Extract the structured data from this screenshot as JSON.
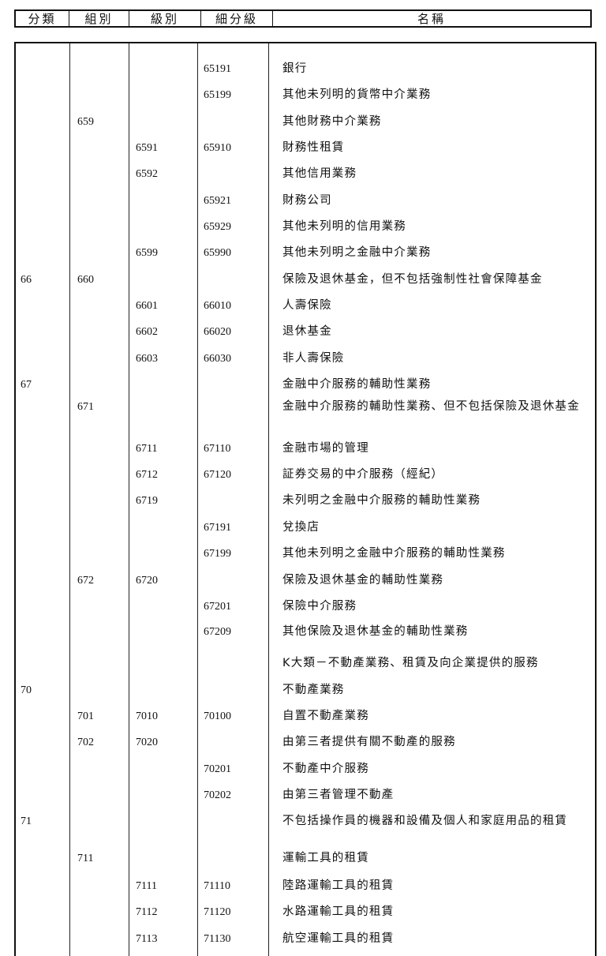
{
  "header": [
    "分類",
    "組別",
    "級別",
    "細分級",
    "名稱"
  ],
  "rows": [
    {
      "c1": "",
      "c2": "",
      "c3": "",
      "c4": "65191",
      "name": "銀行"
    },
    {
      "c1": "",
      "c2": "",
      "c3": "",
      "c4": "65199",
      "name": "其他未列明的貨幣中介業務"
    },
    {
      "c1": "",
      "c2": "659",
      "c3": "",
      "c4": "",
      "name": "其他財務中介業務"
    },
    {
      "c1": "",
      "c2": "",
      "c3": "6591",
      "c4": "65910",
      "name": "財務性租賃"
    },
    {
      "c1": "",
      "c2": "",
      "c3": "6592",
      "c4": "",
      "name": "其他信用業務"
    },
    {
      "c1": "",
      "c2": "",
      "c3": "",
      "c4": "65921",
      "name": "財務公司"
    },
    {
      "c1": "",
      "c2": "",
      "c3": "",
      "c4": "65929",
      "name": "其他未列明的信用業務"
    },
    {
      "c1": "",
      "c2": "",
      "c3": "6599",
      "c4": "65990",
      "name": "其他未列明之金融中介業務"
    },
    {
      "c1": "66",
      "c2": "660",
      "c3": "",
      "c4": "",
      "name": "保險及退休基金，但不包括強制性社會保障基金"
    },
    {
      "c1": "",
      "c2": "",
      "c3": "6601",
      "c4": "66010",
      "name": "人壽保險"
    },
    {
      "c1": "",
      "c2": "",
      "c3": "6602",
      "c4": "66020",
      "name": "退休基金"
    },
    {
      "c1": "",
      "c2": "",
      "c3": "6603",
      "c4": "66030",
      "name": "非人壽保險"
    },
    {
      "c1": "67",
      "c2": "",
      "c3": "",
      "c4": "",
      "name": "金融中介服務的輔助性業務"
    },
    {
      "c1": "",
      "c2": "671",
      "c3": "",
      "c4": "",
      "name": "金融中介服務的輔助性業務、但不包括保險及退休基金"
    },
    {
      "c1": "",
      "c2": "",
      "c3": "6711",
      "c4": "67110",
      "name": "金融市場的管理"
    },
    {
      "c1": "",
      "c2": "",
      "c3": "6712",
      "c4": "67120",
      "name": "証券交易的中介服務（經紀）"
    },
    {
      "c1": "",
      "c2": "",
      "c3": "6719",
      "c4": "",
      "name": "未列明之金融中介服務的輔助性業務"
    },
    {
      "c1": "",
      "c2": "",
      "c3": "",
      "c4": "67191",
      "name": "兌換店"
    },
    {
      "c1": "",
      "c2": "",
      "c3": "",
      "c4": "67199",
      "name": "其他未列明之金融中介服務的輔助性業務"
    },
    {
      "c1": "",
      "c2": "672",
      "c3": "6720",
      "c4": "",
      "name": "保險及退休基金的輔助性業務"
    },
    {
      "c1": "",
      "c2": "",
      "c3": "",
      "c4": "67201",
      "name": "保險中介服務"
    },
    {
      "c1": "",
      "c2": "",
      "c3": "",
      "c4": "67209",
      "name": "其他保險及退休基金的輔助性業務"
    },
    {
      "c1": "",
      "c2": "",
      "c3": "",
      "c4": "",
      "name": "K大類－不動產業務、租賃及向企業提供的服務"
    },
    {
      "c1": "70",
      "c2": "",
      "c3": "",
      "c4": "",
      "name": "不動產業務"
    },
    {
      "c1": "",
      "c2": "701",
      "c3": "7010",
      "c4": "70100",
      "name": "自置不動產業務"
    },
    {
      "c1": "",
      "c2": "702",
      "c3": "7020",
      "c4": "",
      "name": "由第三者提供有關不動產的服務"
    },
    {
      "c1": "",
      "c2": "",
      "c3": "",
      "c4": "70201",
      "name": "不動產中介服務"
    },
    {
      "c1": "",
      "c2": "",
      "c3": "",
      "c4": "70202",
      "name": "由第三者管理不動產"
    },
    {
      "c1": "71",
      "c2": "",
      "c3": "",
      "c4": "",
      "name": "不包括操作員的機器和設備及個人和家庭用品的租賃"
    },
    {
      "c1": "",
      "c2": "711",
      "c3": "",
      "c4": "",
      "name": "運輸工具的租賃"
    },
    {
      "c1": "",
      "c2": "",
      "c3": "7111",
      "c4": "71110",
      "name": "陸路運輸工具的租賃"
    },
    {
      "c1": "",
      "c2": "",
      "c3": "7112",
      "c4": "71120",
      "name": "水路運輸工具的租賃"
    },
    {
      "c1": "",
      "c2": "",
      "c3": "7113",
      "c4": "71130",
      "name": "航空運輸工具的租賃"
    }
  ]
}
